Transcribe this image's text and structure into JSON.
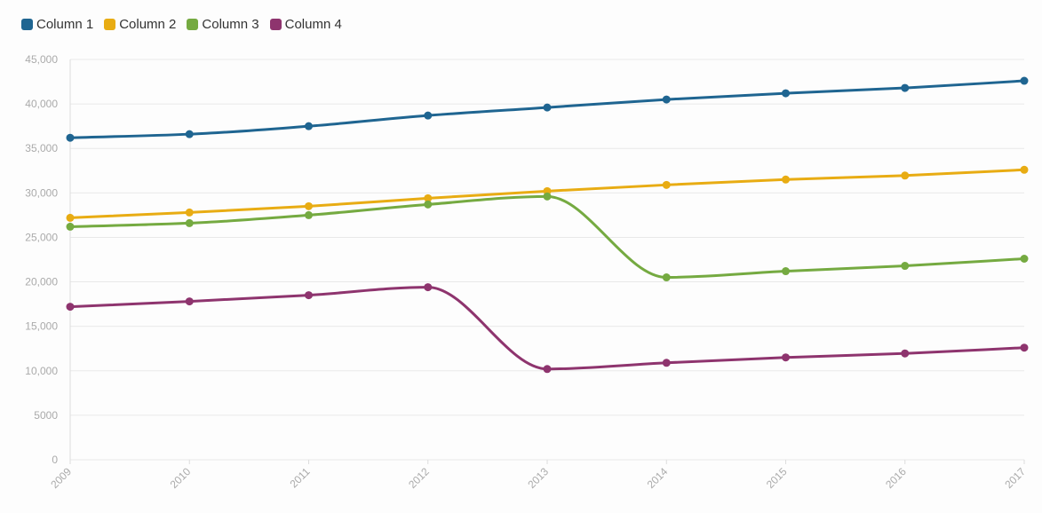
{
  "chart_data": {
    "type": "line",
    "x": [
      "2009",
      "2010",
      "2011",
      "2012",
      "2013",
      "2014",
      "2015",
      "2016",
      "2017"
    ],
    "series": [
      {
        "name": "Column 1",
        "color": "#1f6591",
        "values": [
          36200,
          36600,
          37500,
          38700,
          39600,
          40500,
          41200,
          41800,
          42600
        ]
      },
      {
        "name": "Column 2",
        "color": "#e8ac13",
        "values": [
          27200,
          27800,
          28500,
          29400,
          30200,
          30900,
          31500,
          31950,
          32600
        ]
      },
      {
        "name": "Column 3",
        "color": "#75aa41",
        "values": [
          26200,
          26600,
          27500,
          28700,
          29600,
          20500,
          21200,
          21800,
          22600
        ]
      },
      {
        "name": "Column 4",
        "color": "#8e346e",
        "values": [
          17200,
          17800,
          18500,
          19400,
          10200,
          10900,
          11500,
          11950,
          12600
        ]
      }
    ],
    "ylim": [
      0,
      45000
    ],
    "yticks": [
      "0",
      "5000",
      "10,000",
      "15,000",
      "20,000",
      "25,000",
      "30,000",
      "35,000",
      "40,000",
      "45,000"
    ],
    "grid": true,
    "legend_position": "top-left",
    "curve": "smooth"
  }
}
